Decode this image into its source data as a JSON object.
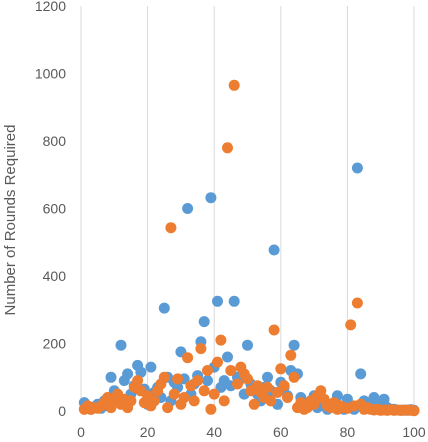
{
  "chart_data": {
    "type": "scatter",
    "title": "",
    "xlabel": "",
    "ylabel": "Number of Rounds Required",
    "xlim": [
      0,
      100
    ],
    "ylim": [
      0,
      1200
    ],
    "x_ticks": [
      "0",
      "20",
      "40",
      "60",
      "80",
      "100"
    ],
    "y_ticks": [
      "0",
      "200",
      "400",
      "600",
      "800",
      "1000",
      "1200"
    ],
    "grid": "vertical",
    "legend": "none",
    "series": [
      {
        "color": "#5b9bd5",
        "points": [
          [
            1,
            25
          ],
          [
            2,
            10
          ],
          [
            3,
            5
          ],
          [
            4,
            12
          ],
          [
            5,
            20
          ],
          [
            6,
            8
          ],
          [
            7,
            30
          ],
          [
            8,
            15
          ],
          [
            9,
            100
          ],
          [
            10,
            60
          ],
          [
            11,
            40
          ],
          [
            12,
            195
          ],
          [
            13,
            90
          ],
          [
            14,
            110
          ],
          [
            15,
            50
          ],
          [
            16,
            75
          ],
          [
            17,
            135
          ],
          [
            18,
            115
          ],
          [
            19,
            65
          ],
          [
            20,
            20
          ],
          [
            21,
            130
          ],
          [
            22,
            55
          ],
          [
            23,
            70
          ],
          [
            24,
            40
          ],
          [
            25,
            305
          ],
          [
            26,
            100
          ],
          [
            27,
            30
          ],
          [
            28,
            85
          ],
          [
            29,
            70
          ],
          [
            30,
            175
          ],
          [
            31,
            95
          ],
          [
            32,
            600
          ],
          [
            33,
            50
          ],
          [
            34,
            80
          ],
          [
            35,
            105
          ],
          [
            36,
            205
          ],
          [
            37,
            265
          ],
          [
            38,
            90
          ],
          [
            39,
            632
          ],
          [
            40,
            130
          ],
          [
            41,
            325
          ],
          [
            42,
            70
          ],
          [
            43,
            90
          ],
          [
            44,
            160
          ],
          [
            45,
            75
          ],
          [
            46,
            325
          ],
          [
            47,
            100
          ],
          [
            48,
            95
          ],
          [
            49,
            50
          ],
          [
            50,
            195
          ],
          [
            51,
            80
          ],
          [
            52,
            60
          ],
          [
            53,
            50
          ],
          [
            54,
            30
          ],
          [
            55,
            70
          ],
          [
            56,
            100
          ],
          [
            57,
            60
          ],
          [
            58,
            477
          ],
          [
            59,
            20
          ],
          [
            60,
            85
          ],
          [
            61,
            70
          ],
          [
            62,
            45
          ],
          [
            63,
            120
          ],
          [
            64,
            195
          ],
          [
            65,
            110
          ],
          [
            66,
            40
          ],
          [
            67,
            20
          ],
          [
            68,
            15
          ],
          [
            69,
            30
          ],
          [
            70,
            45
          ],
          [
            71,
            10
          ],
          [
            72,
            30
          ],
          [
            73,
            25
          ],
          [
            74,
            5
          ],
          [
            75,
            20
          ],
          [
            76,
            15
          ],
          [
            77,
            45
          ],
          [
            78,
            10
          ],
          [
            79,
            5
          ],
          [
            80,
            35
          ],
          [
            81,
            15
          ],
          [
            82,
            5
          ],
          [
            83,
            720
          ],
          [
            84,
            110
          ],
          [
            85,
            30
          ],
          [
            86,
            25
          ],
          [
            87,
            10
          ],
          [
            88,
            40
          ],
          [
            89,
            15
          ],
          [
            90,
            5
          ],
          [
            91,
            35
          ],
          [
            92,
            10
          ],
          [
            93,
            5
          ],
          [
            94,
            5
          ],
          [
            95,
            3
          ],
          [
            96,
            2
          ],
          [
            97,
            3
          ],
          [
            98,
            2
          ],
          [
            99,
            4
          ],
          [
            100,
            2
          ]
        ]
      },
      {
        "color": "#ed7d31",
        "points": [
          [
            1,
            5
          ],
          [
            2,
            15
          ],
          [
            3,
            5
          ],
          [
            4,
            10
          ],
          [
            5,
            8
          ],
          [
            6,
            15
          ],
          [
            7,
            25
          ],
          [
            8,
            40
          ],
          [
            9,
            10
          ],
          [
            10,
            30
          ],
          [
            11,
            50
          ],
          [
            12,
            20
          ],
          [
            13,
            35
          ],
          [
            14,
            10
          ],
          [
            15,
            30
          ],
          [
            16,
            70
          ],
          [
            17,
            90
          ],
          [
            18,
            60
          ],
          [
            19,
            25
          ],
          [
            20,
            45
          ],
          [
            21,
            15
          ],
          [
            22,
            30
          ],
          [
            23,
            60
          ],
          [
            24,
            80
          ],
          [
            25,
            100
          ],
          [
            26,
            10
          ],
          [
            27,
            543
          ],
          [
            28,
            50
          ],
          [
            29,
            95
          ],
          [
            30,
            20
          ],
          [
            31,
            40
          ],
          [
            32,
            158
          ],
          [
            33,
            75
          ],
          [
            34,
            30
          ],
          [
            35,
            90
          ],
          [
            36,
            185
          ],
          [
            37,
            60
          ],
          [
            38,
            120
          ],
          [
            39,
            5
          ],
          [
            40,
            50
          ],
          [
            41,
            145
          ],
          [
            42,
            210
          ],
          [
            43,
            30
          ],
          [
            44,
            780
          ],
          [
            45,
            120
          ],
          [
            46,
            965
          ],
          [
            47,
            80
          ],
          [
            48,
            130
          ],
          [
            49,
            110
          ],
          [
            50,
            95
          ],
          [
            51,
            60
          ],
          [
            52,
            20
          ],
          [
            53,
            75
          ],
          [
            54,
            55
          ],
          [
            55,
            40
          ],
          [
            56,
            70
          ],
          [
            57,
            30
          ],
          [
            58,
            240
          ],
          [
            59,
            55
          ],
          [
            60,
            125
          ],
          [
            61,
            75
          ],
          [
            62,
            40
          ],
          [
            63,
            165
          ],
          [
            64,
            100
          ],
          [
            65,
            10
          ],
          [
            66,
            25
          ],
          [
            67,
            5
          ],
          [
            68,
            10
          ],
          [
            69,
            30
          ],
          [
            70,
            20
          ],
          [
            71,
            45
          ],
          [
            72,
            60
          ],
          [
            73,
            35
          ],
          [
            74,
            15
          ],
          [
            75,
            10
          ],
          [
            76,
            25
          ],
          [
            77,
            5
          ],
          [
            78,
            15
          ],
          [
            79,
            10
          ],
          [
            80,
            8
          ],
          [
            81,
            255
          ],
          [
            82,
            15
          ],
          [
            83,
            320
          ],
          [
            84,
            20
          ],
          [
            85,
            5
          ],
          [
            86,
            10
          ],
          [
            87,
            5
          ],
          [
            88,
            3
          ],
          [
            89,
            5
          ],
          [
            90,
            2
          ],
          [
            91,
            3
          ],
          [
            92,
            2
          ],
          [
            93,
            4
          ],
          [
            94,
            2
          ],
          [
            95,
            3
          ],
          [
            96,
            2
          ],
          [
            97,
            2
          ],
          [
            98,
            3
          ],
          [
            99,
            2
          ],
          [
            100,
            1
          ]
        ]
      }
    ]
  }
}
